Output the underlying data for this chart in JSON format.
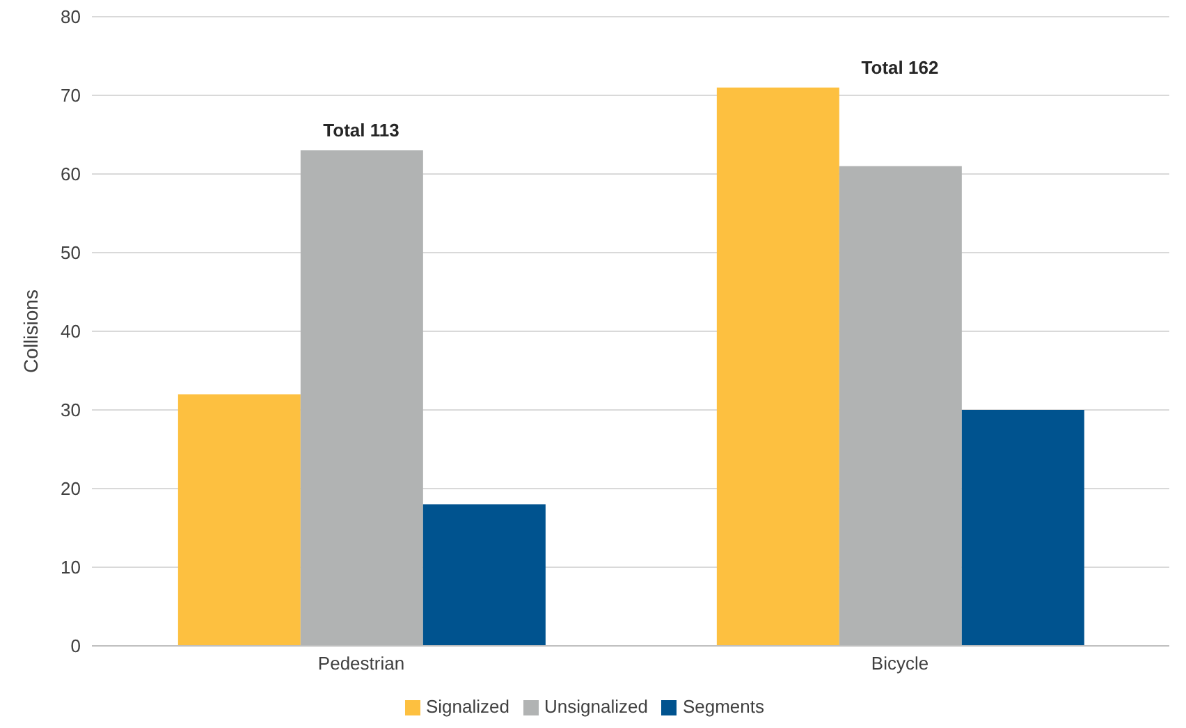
{
  "chart_data": {
    "type": "bar",
    "ylabel": "Collisions",
    "categories": [
      "Pedestrian",
      "Bicycle"
    ],
    "series": [
      {
        "name": "Signalized",
        "color": "#fdc040",
        "values": [
          32,
          71
        ]
      },
      {
        "name": "Unsignalized",
        "color": "#b1b3b3",
        "values": [
          63,
          61
        ]
      },
      {
        "name": "Segments",
        "color": "#00538f",
        "values": [
          18,
          30
        ]
      }
    ],
    "ylim": [
      0,
      80
    ],
    "yticks": [
      0,
      10,
      20,
      30,
      40,
      50,
      60,
      70,
      80
    ],
    "grid": "y",
    "legend": "bottom",
    "totals": [
      "Total 113",
      "Total 162"
    ]
  }
}
